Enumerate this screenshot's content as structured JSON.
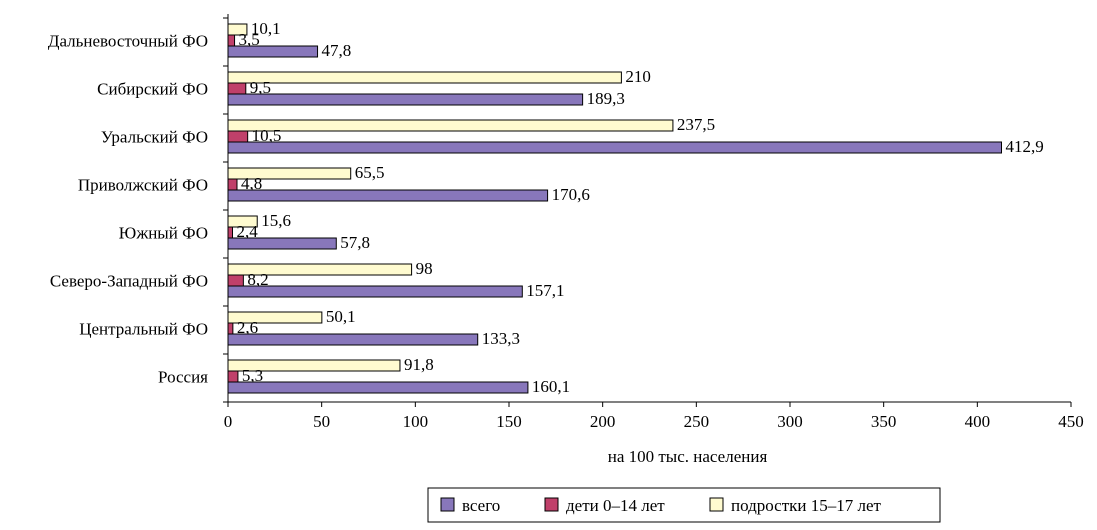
{
  "chart_data": {
    "type": "bar",
    "orientation": "horizontal",
    "categories": [
      "Дальневосточный ФО",
      "Сибирский ФО",
      "Уральский ФО",
      "Приволжский ФО",
      "Южный ФО",
      "Северо-Западный ФО",
      "Центральный ФО",
      "Россия"
    ],
    "series": [
      {
        "name": "всего",
        "color": "#8877bb",
        "values": [
          47.8,
          189.3,
          412.9,
          170.6,
          57.8,
          157.1,
          133.3,
          160.1
        ],
        "labels": [
          "47,8",
          "189,3",
          "412,9",
          "170,6",
          "57,8",
          "157,1",
          "133,3",
          "160,1"
        ]
      },
      {
        "name": "дети 0–14 лет",
        "color": "#c0406a",
        "values": [
          3.5,
          9.5,
          10.5,
          4.8,
          2.4,
          8.2,
          2.6,
          5.3
        ],
        "labels": [
          "3,5",
          "9,5",
          "10,5",
          "4,8",
          "2,4",
          "8,2",
          "2,6",
          "5,3"
        ]
      },
      {
        "name": "подростки 15–17 лет",
        "color": "#fffbd0",
        "values": [
          10.1,
          210,
          237.5,
          65.5,
          15.6,
          98,
          50.1,
          91.8
        ],
        "labels": [
          "10,1",
          "210",
          "237,5",
          "65,5",
          "15,6",
          "98",
          "50,1",
          "91,8"
        ]
      }
    ],
    "xlabel": "на 100 тыс. населения",
    "ylabel": "",
    "xlim": [
      0,
      450
    ],
    "xticks": [
      0,
      50,
      100,
      150,
      200,
      250,
      300,
      350,
      400,
      450
    ],
    "grid": false,
    "legend_position": "bottom"
  }
}
